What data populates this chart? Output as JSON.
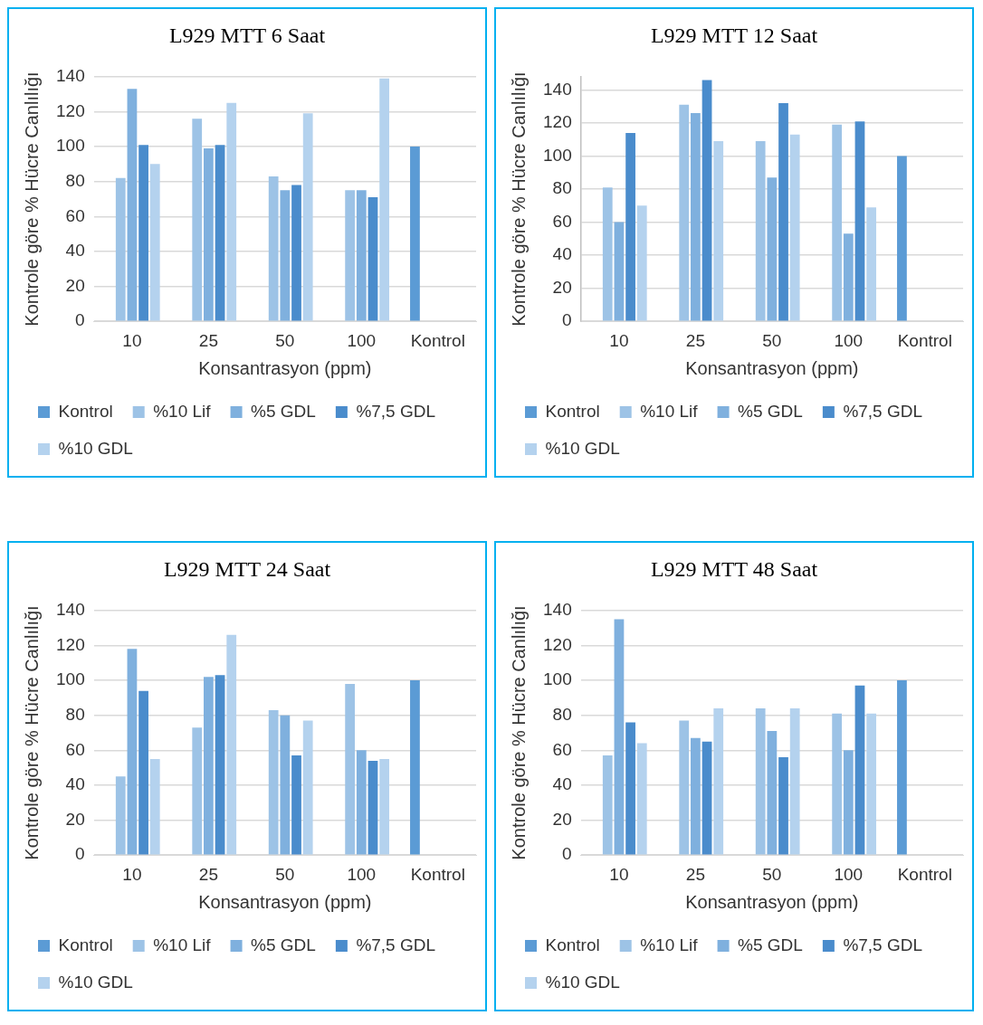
{
  "chart_data": [
    {
      "type": "bar",
      "title": "L929 MTT 6 Saat",
      "xlabel": "Konsantrasyon (ppm)",
      "ylabel": "Kontrole göre % Hücre Canlılığı",
      "categories": [
        "10",
        "25",
        "50",
        "100",
        "Kontrol"
      ],
      "ylim": [
        0,
        140
      ],
      "yticks": [
        0,
        20,
        40,
        60,
        80,
        100,
        120,
        140
      ],
      "grid": "y",
      "legend": "bottom",
      "series": [
        {
          "name": "Kontrol",
          "color": "#5b9bd5",
          "values": [
            null,
            null,
            null,
            null,
            100
          ]
        },
        {
          "name": "%10 Lif",
          "color": "#9dc3e6",
          "values": [
            82,
            116,
            83,
            75,
            null
          ]
        },
        {
          "name": "%5 GDL",
          "color": "#7fb0de",
          "values": [
            133,
            99,
            75,
            75,
            null
          ]
        },
        {
          "name": "%7,5 GDL",
          "color": "#4a8ccc",
          "values": [
            101,
            101,
            78,
            71,
            null
          ]
        },
        {
          "name": "%10 GDL",
          "color": "#b4d2ee",
          "values": [
            90,
            125,
            119,
            139,
            null
          ]
        }
      ]
    },
    {
      "type": "bar",
      "title": "L929 MTT 12 Saat",
      "xlabel": "Konsantrasyon (ppm)",
      "ylabel": "Kontrole göre % Hücre Canlılığı",
      "categories": [
        "10",
        "25",
        "50",
        "100",
        "Kontrol"
      ],
      "ylim": [
        0,
        148
      ],
      "yticks": [
        0,
        20,
        40,
        60,
        80,
        100,
        120,
        140
      ],
      "grid": "y",
      "legend": "bottom",
      "series": [
        {
          "name": "Kontrol",
          "color": "#5b9bd5",
          "values": [
            null,
            null,
            null,
            null,
            100
          ]
        },
        {
          "name": "%10 Lif",
          "color": "#9dc3e6",
          "values": [
            81,
            131,
            109,
            119,
            null
          ]
        },
        {
          "name": "%5 GDL",
          "color": "#7fb0de",
          "values": [
            60,
            126,
            87,
            53,
            null
          ]
        },
        {
          "name": "%7,5 GDL",
          "color": "#4a8ccc",
          "values": [
            114,
            146,
            132,
            121,
            null
          ]
        },
        {
          "name": "%10 GDL",
          "color": "#b4d2ee",
          "values": [
            70,
            109,
            113,
            69,
            null
          ]
        }
      ]
    },
    {
      "type": "bar",
      "title": "L929 MTT 24 Saat",
      "xlabel": "Konsantrasyon (ppm)",
      "ylabel": "Kontrole göre % Hücre Canlılığı",
      "categories": [
        "10",
        "25",
        "50",
        "100",
        "Kontrol"
      ],
      "ylim": [
        0,
        140
      ],
      "yticks": [
        0,
        20,
        40,
        60,
        80,
        100,
        120,
        140
      ],
      "grid": "y",
      "legend": "bottom",
      "series": [
        {
          "name": "Kontrol",
          "color": "#5b9bd5",
          "values": [
            null,
            null,
            null,
            null,
            100
          ]
        },
        {
          "name": "%10 Lif",
          "color": "#9dc3e6",
          "values": [
            45,
            73,
            83,
            98,
            null
          ]
        },
        {
          "name": "%5 GDL",
          "color": "#7fb0de",
          "values": [
            118,
            102,
            80,
            60,
            null
          ]
        },
        {
          "name": "%7,5 GDL",
          "color": "#4a8ccc",
          "values": [
            94,
            103,
            57,
            54,
            null
          ]
        },
        {
          "name": "%10 GDL",
          "color": "#b4d2ee",
          "values": [
            55,
            126,
            77,
            55,
            null
          ]
        }
      ]
    },
    {
      "type": "bar",
      "title": "L929 MTT 48 Saat",
      "xlabel": "Konsantrasyon (ppm)",
      "ylabel": "Kontrole göre % Hücre Canlılığı",
      "categories": [
        "10",
        "25",
        "50",
        "100",
        "Kontrol"
      ],
      "ylim": [
        0,
        140
      ],
      "yticks": [
        0,
        20,
        40,
        60,
        80,
        100,
        120,
        140
      ],
      "grid": "y",
      "legend": "bottom",
      "series": [
        {
          "name": "Kontrol",
          "color": "#5b9bd5",
          "values": [
            null,
            null,
            null,
            null,
            100
          ]
        },
        {
          "name": "%10 Lif",
          "color": "#9dc3e6",
          "values": [
            57,
            77,
            84,
            81,
            null
          ]
        },
        {
          "name": "%5 GDL",
          "color": "#7fb0de",
          "values": [
            135,
            67,
            71,
            60,
            null
          ]
        },
        {
          "name": "%7,5 GDL",
          "color": "#4a8ccc",
          "values": [
            76,
            65,
            56,
            97,
            null
          ]
        },
        {
          "name": "%10 GDL",
          "color": "#b4d2ee",
          "values": [
            64,
            84,
            84,
            81,
            null
          ]
        }
      ]
    }
  ]
}
